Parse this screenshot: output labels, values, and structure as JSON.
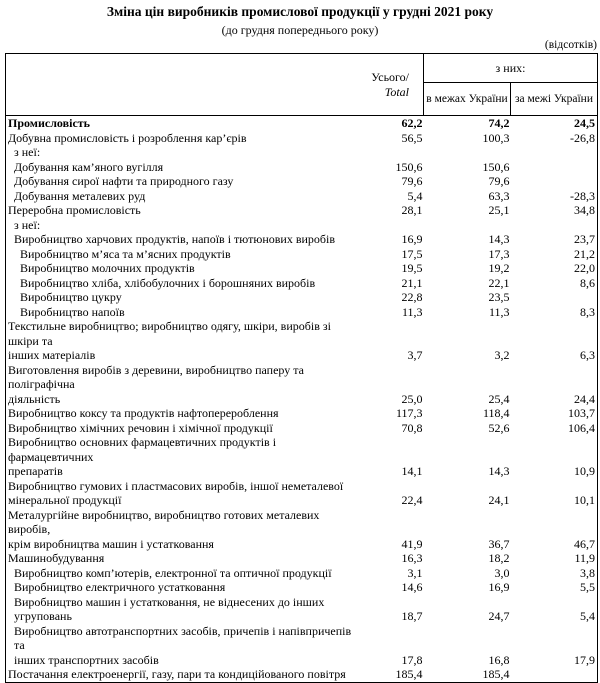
{
  "title": "Зміна цін виробників промислової продукції у грудні 2021 року",
  "subtitle": "(до грудня попереднього року)",
  "units_note": "(відсотків)",
  "table": {
    "header": {
      "total_label_ua": "Усього/",
      "total_label_en": "Total",
      "group_label": "з них:",
      "sub_within": "в межах України",
      "sub_outside": "за межі України"
    },
    "columns": [
      "label",
      "total",
      "within_ukraine",
      "outside_ukraine"
    ],
    "rows": [
      {
        "label": "Промисловість",
        "indent": 0,
        "bold": true,
        "v": [
          "62,2",
          "74,2",
          "24,5"
        ]
      },
      {
        "label": "Добувна промисловість і розроблення кар’єрів",
        "indent": 0,
        "bold": false,
        "v": [
          "56,5",
          "100,3",
          "-26,8"
        ]
      },
      {
        "label": "з неї:",
        "indent": 1,
        "bold": false,
        "v": [
          "",
          "",
          ""
        ]
      },
      {
        "label": "Добування кам’яного вугілля",
        "indent": 1,
        "bold": false,
        "v": [
          "150,6",
          "150,6",
          ""
        ]
      },
      {
        "label": "Добування сирої нафти та природного газу",
        "indent": 1,
        "bold": false,
        "v": [
          "79,6",
          "79,6",
          ""
        ]
      },
      {
        "label": "Добування металевих руд",
        "indent": 1,
        "bold": false,
        "v": [
          "5,4",
          "63,3",
          "-28,3"
        ]
      },
      {
        "label": "Переробна промисловість",
        "indent": 0,
        "bold": false,
        "v": [
          "28,1",
          "25,1",
          "34,8"
        ]
      },
      {
        "label": "з неї:",
        "indent": 1,
        "bold": false,
        "v": [
          "",
          "",
          ""
        ]
      },
      {
        "label": "Виробництво харчових продуктів, напоїв і тютюнових виробів",
        "indent": 1,
        "bold": false,
        "v": [
          "16,9",
          "14,3",
          "23,7"
        ]
      },
      {
        "label": "Виробництво м’яса та м’ясних продуктів",
        "indent": 2,
        "bold": false,
        "v": [
          "17,5",
          "17,3",
          "21,2"
        ]
      },
      {
        "label": "Виробництво молочних продуктів",
        "indent": 2,
        "bold": false,
        "v": [
          "19,5",
          "19,2",
          "22,0"
        ]
      },
      {
        "label": "Виробництво хліба, хлібобулочних і борошняних виробів",
        "indent": 2,
        "bold": false,
        "v": [
          "21,1",
          "22,1",
          "8,6"
        ]
      },
      {
        "label": "Виробництво цукру",
        "indent": 2,
        "bold": false,
        "v": [
          "22,8",
          "23,5",
          ""
        ]
      },
      {
        "label": "Виробництво напоїв",
        "indent": 2,
        "bold": false,
        "v": [
          "11,3",
          "11,3",
          "8,3"
        ]
      },
      {
        "label": "Текстильне виробництво; виробництво одягу, шкіри, виробів зі шкіри та\nінших матеріалів",
        "indent": 0,
        "bold": false,
        "v": [
          "3,7",
          "3,2",
          "6,3"
        ]
      },
      {
        "label": "Виготовлення виробів з деревини, виробництво паперу та поліграфічна\nдіяльність",
        "indent": 0,
        "bold": false,
        "v": [
          "25,0",
          "25,4",
          "24,4"
        ]
      },
      {
        "label": "Виробництво коксу та продуктів нафтоперероблення",
        "indent": 0,
        "bold": false,
        "v": [
          "117,3",
          "118,4",
          "103,7"
        ]
      },
      {
        "label": "Виробництво хімічних речовин і хімічної продукції",
        "indent": 0,
        "bold": false,
        "v": [
          "70,8",
          "52,6",
          "106,4"
        ]
      },
      {
        "label": "Виробництво основних фармацевтичних продуктів і фармацевтичних\nпрепаратів",
        "indent": 0,
        "bold": false,
        "v": [
          "14,1",
          "14,3",
          "10,9"
        ]
      },
      {
        "label": "Виробництво гумових і пластмасових виробів, іншої неметалевої\nмінеральної продукції",
        "indent": 0,
        "bold": false,
        "v": [
          "22,4",
          "24,1",
          "10,1"
        ]
      },
      {
        "label": "Металургійне виробництво, виробництво готових металевих виробів,\nкрім виробництва машин і устатковання",
        "indent": 0,
        "bold": false,
        "v": [
          "41,9",
          "36,7",
          "46,7"
        ]
      },
      {
        "label": "Машинобудування",
        "indent": 0,
        "bold": false,
        "v": [
          "16,3",
          "18,2",
          "11,9"
        ]
      },
      {
        "label": "Виробництво комп’ютерів, електронної та оптичної продукції",
        "indent": 1,
        "bold": false,
        "v": [
          "3,1",
          "3,0",
          "3,8"
        ]
      },
      {
        "label": "Виробництво електричного устатковання",
        "indent": 1,
        "bold": false,
        "v": [
          "14,6",
          "16,9",
          "5,5"
        ]
      },
      {
        "label": "Виробництво машин і устатковання, не віднесених до інших угруповань",
        "indent": 1,
        "bold": false,
        "v": [
          "18,7",
          "24,7",
          "5,4"
        ]
      },
      {
        "label": "Виробництво автотранспортних засобів, причепів і напівпричепів та\nінших транспортних засобів",
        "indent": 1,
        "bold": false,
        "v": [
          "17,8",
          "16,8",
          "17,9"
        ]
      },
      {
        "label": "Постачання електроенергії, газу, пари та кондиційованого повітря",
        "indent": 0,
        "bold": false,
        "v": [
          "185,4",
          "185,4",
          ""
        ]
      }
    ]
  }
}
